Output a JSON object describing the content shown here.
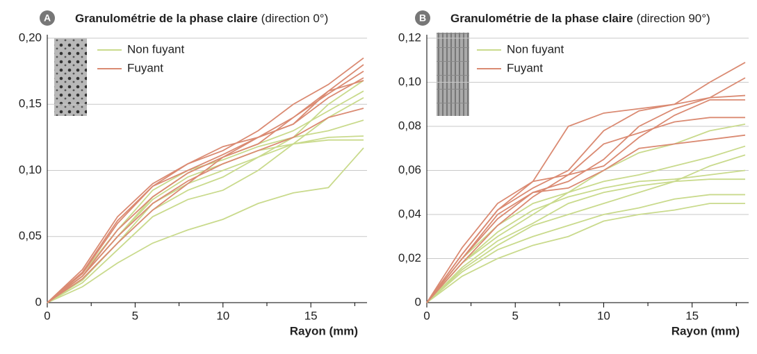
{
  "chart_data": [
    {
      "type": "line",
      "badge": "A",
      "title": "Granulométrie de la phase claire",
      "subtitle": "(direction 0°)",
      "xlabel": "Rayon (mm)",
      "x": [
        0,
        2,
        4,
        6,
        8,
        10,
        12,
        14,
        16,
        18
      ],
      "series": [
        {
          "name": "Non fuyant",
          "color": "#c9da8c",
          "values": [
            [
              0,
              0.012,
              0.03,
              0.045,
              0.055,
              0.063,
              0.075,
              0.083,
              0.087,
              0.117
            ],
            [
              0,
              0.018,
              0.045,
              0.07,
              0.085,
              0.095,
              0.11,
              0.12,
              0.123,
              0.123
            ],
            [
              0,
              0.02,
              0.05,
              0.078,
              0.095,
              0.105,
              0.115,
              0.12,
              0.125,
              0.126
            ],
            [
              0,
              0.022,
              0.055,
              0.085,
              0.1,
              0.108,
              0.118,
              0.125,
              0.13,
              0.138
            ],
            [
              0,
              0.015,
              0.04,
              0.065,
              0.078,
              0.085,
              0.1,
              0.12,
              0.14,
              0.155
            ],
            [
              0,
              0.02,
              0.05,
              0.08,
              0.098,
              0.11,
              0.12,
              0.13,
              0.145,
              0.16
            ],
            [
              0,
              0.017,
              0.045,
              0.075,
              0.09,
              0.1,
              0.11,
              0.125,
              0.15,
              0.168
            ]
          ]
        },
        {
          "name": "Fuyant",
          "color": "#da8a72",
          "values": [
            [
              0,
              0.025,
              0.065,
              0.09,
              0.105,
              0.115,
              0.13,
              0.15,
              0.165,
              0.185
            ],
            [
              0,
              0.022,
              0.06,
              0.088,
              0.1,
              0.112,
              0.125,
              0.135,
              0.16,
              0.18
            ],
            [
              0,
              0.02,
              0.055,
              0.08,
              0.098,
              0.11,
              0.12,
              0.14,
              0.158,
              0.175
            ],
            [
              0,
              0.018,
              0.045,
              0.07,
              0.09,
              0.11,
              0.125,
              0.14,
              0.16,
              0.168
            ],
            [
              0,
              0.02,
              0.05,
              0.075,
              0.092,
              0.105,
              0.115,
              0.125,
              0.14,
              0.147
            ],
            [
              0,
              0.023,
              0.062,
              0.088,
              0.105,
              0.118,
              0.125,
              0.135,
              0.155,
              0.17
            ]
          ]
        }
      ],
      "xlim": [
        0,
        18
      ],
      "xticks": [
        0,
        5,
        10,
        15
      ],
      "xminor": [
        2.5,
        7.5,
        12.5,
        17.5
      ],
      "ylim": [
        0,
        0.2
      ],
      "yticks": [
        0,
        {
          "value": 0.05,
          "label": "0,05"
        },
        {
          "value": 0.1,
          "label": "0,10"
        },
        {
          "value": 0.15,
          "label": "0,15"
        },
        {
          "value": 0.2,
          "label": "0,20"
        }
      ],
      "grid": true,
      "legend": "upper left"
    },
    {
      "type": "line",
      "badge": "B",
      "title": "Granulométrie de la phase claire",
      "subtitle": "(direction 90°)",
      "xlabel": "Rayon (mm)",
      "x": [
        0,
        2,
        4,
        6,
        8,
        10,
        12,
        14,
        16,
        18
      ],
      "series": [
        {
          "name": "Non fuyant",
          "color": "#c9da8c",
          "values": [
            [
              0,
              0.012,
              0.02,
              0.026,
              0.03,
              0.037,
              0.04,
              0.042,
              0.045,
              0.045
            ],
            [
              0,
              0.014,
              0.024,
              0.03,
              0.035,
              0.04,
              0.043,
              0.047,
              0.049,
              0.049
            ],
            [
              0,
              0.016,
              0.028,
              0.036,
              0.045,
              0.05,
              0.053,
              0.055,
              0.056,
              0.056
            ],
            [
              0,
              0.018,
              0.032,
              0.042,
              0.048,
              0.052,
              0.055,
              0.056,
              0.058,
              0.06
            ],
            [
              0,
              0.015,
              0.026,
              0.035,
              0.04,
              0.045,
              0.05,
              0.055,
              0.062,
              0.067
            ],
            [
              0,
              0.02,
              0.035,
              0.045,
              0.05,
              0.055,
              0.058,
              0.062,
              0.066,
              0.071
            ],
            [
              0,
              0.018,
              0.03,
              0.04,
              0.05,
              0.06,
              0.068,
              0.072,
              0.078,
              0.081
            ]
          ]
        },
        {
          "name": "Fuyant",
          "color": "#da8a72",
          "values": [
            [
              0,
              0.025,
              0.045,
              0.055,
              0.08,
              0.086,
              0.088,
              0.09,
              0.1,
              0.109
            ],
            [
              0,
              0.022,
              0.042,
              0.052,
              0.06,
              0.078,
              0.087,
              0.09,
              0.093,
              0.102
            ],
            [
              0,
              0.02,
              0.04,
              0.05,
              0.055,
              0.065,
              0.08,
              0.088,
              0.093,
              0.094
            ],
            [
              0,
              0.018,
              0.035,
              0.048,
              0.058,
              0.072,
              0.077,
              0.082,
              0.084,
              0.084
            ],
            [
              0,
              0.02,
              0.038,
              0.05,
              0.052,
              0.06,
              0.07,
              0.072,
              0.074,
              0.076
            ],
            [
              0,
              0.022,
              0.042,
              0.055,
              0.058,
              0.062,
              0.075,
              0.085,
              0.092,
              0.092
            ]
          ]
        }
      ],
      "xlim": [
        0,
        18
      ],
      "xticks": [
        0,
        5,
        10,
        15
      ],
      "xminor": [
        2.5,
        7.5,
        12.5,
        17.5
      ],
      "ylim": [
        0,
        0.12
      ],
      "yticks": [
        0,
        {
          "value": 0.02,
          "label": "0,02"
        },
        {
          "value": 0.04,
          "label": "0,04"
        },
        {
          "value": 0.06,
          "label": "0,06"
        },
        {
          "value": 0.08,
          "label": "0,08"
        },
        {
          "value": 0.1,
          "label": "0,10"
        },
        {
          "value": 0.12,
          "label": "0,12"
        }
      ],
      "grid": true,
      "legend": "upper left"
    }
  ]
}
